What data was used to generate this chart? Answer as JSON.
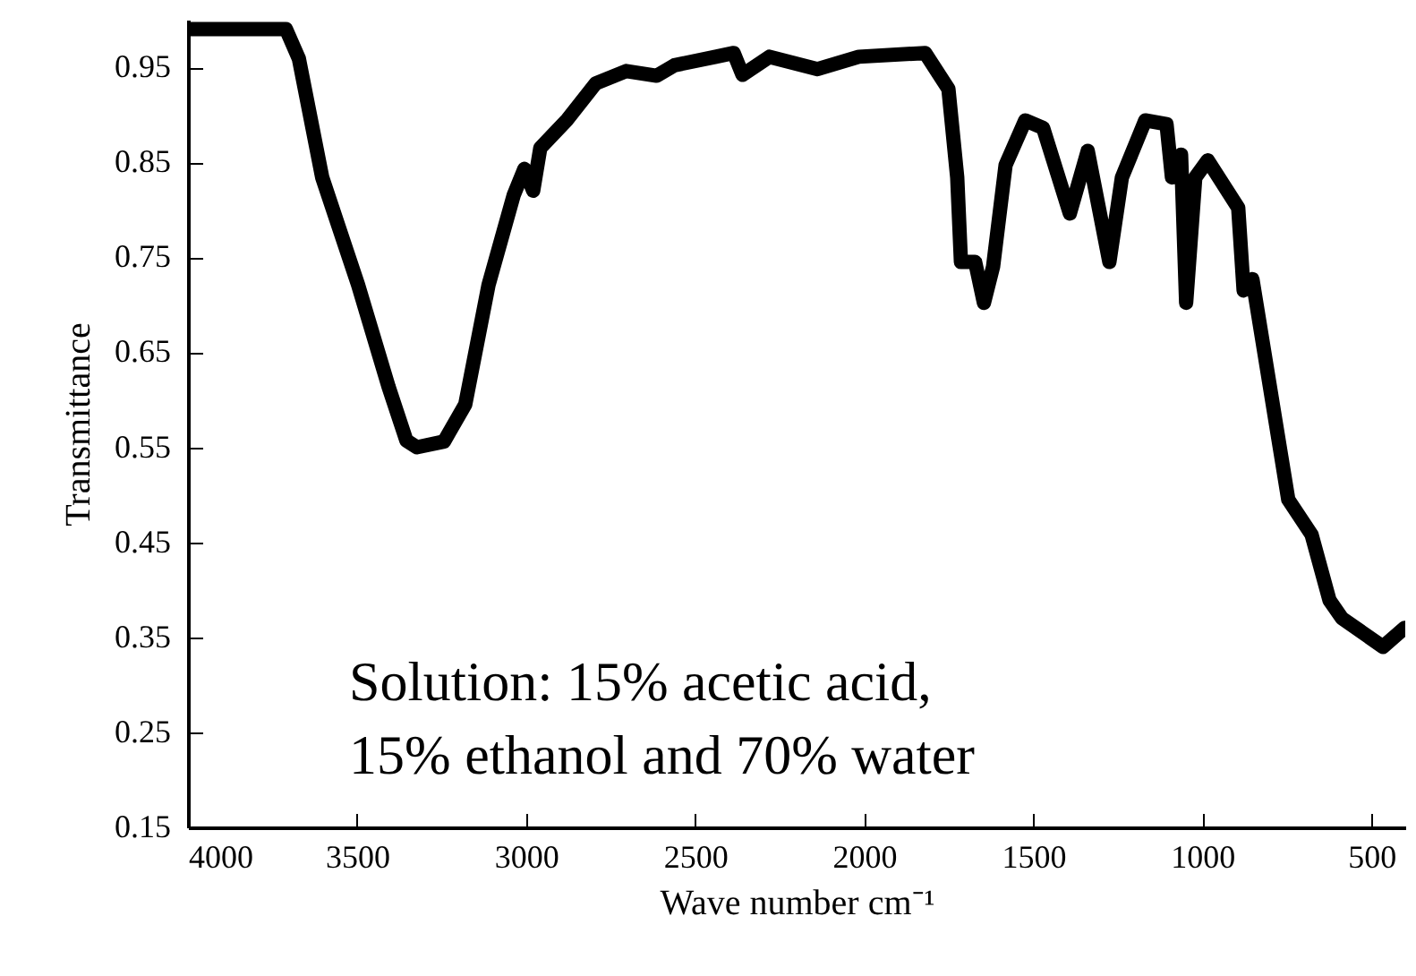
{
  "chart_data": {
    "type": "line",
    "xlabel": "Wave number cm⁻¹",
    "ylabel": "Transmittance",
    "annotations": [
      "Solution: 15% acetic acid,",
      "15% ethanol and 70% water"
    ],
    "xlim": [
      4000,
      400
    ],
    "xticks": [
      4000,
      3500,
      3000,
      2500,
      2000,
      1500,
      1000,
      500
    ],
    "ylim": [
      0.15,
      1.0
    ],
    "yticks": [
      0.15,
      0.25,
      0.35,
      0.45,
      0.55,
      0.65,
      0.75,
      0.85,
      0.95
    ],
    "grid": false,
    "line_style": "solid",
    "series": [
      {
        "color": "#000000",
        "x": [
          4000,
          3710,
          3672,
          3603,
          3497,
          3407,
          3354,
          3323,
          3243,
          3180,
          3111,
          3037,
          3005,
          2979,
          2958,
          2878,
          2794,
          2704,
          2614,
          2561,
          2439,
          2386,
          2360,
          2280,
          2138,
          2016,
          1820,
          1751,
          1725,
          1714,
          1672,
          1646,
          1619,
          1582,
          1524,
          1471,
          1392,
          1339,
          1275,
          1238,
          1169,
          1106,
          1090,
          1063,
          1048,
          1021,
          984,
          894,
          878,
          852,
          746,
          677,
          624,
          587,
          466,
          402
        ],
        "values": [
          0.99,
          0.99,
          0.959,
          0.834,
          0.721,
          0.614,
          0.557,
          0.55,
          0.556,
          0.595,
          0.721,
          0.815,
          0.843,
          0.82,
          0.865,
          0.895,
          0.933,
          0.946,
          0.941,
          0.952,
          0.961,
          0.965,
          0.942,
          0.961,
          0.948,
          0.961,
          0.965,
          0.927,
          0.834,
          0.745,
          0.745,
          0.702,
          0.74,
          0.847,
          0.894,
          0.886,
          0.796,
          0.862,
          0.745,
          0.834,
          0.894,
          0.89,
          0.834,
          0.858,
          0.702,
          0.834,
          0.852,
          0.802,
          0.715,
          0.727,
          0.495,
          0.458,
          0.389,
          0.37,
          0.34,
          0.36
        ]
      }
    ]
  }
}
